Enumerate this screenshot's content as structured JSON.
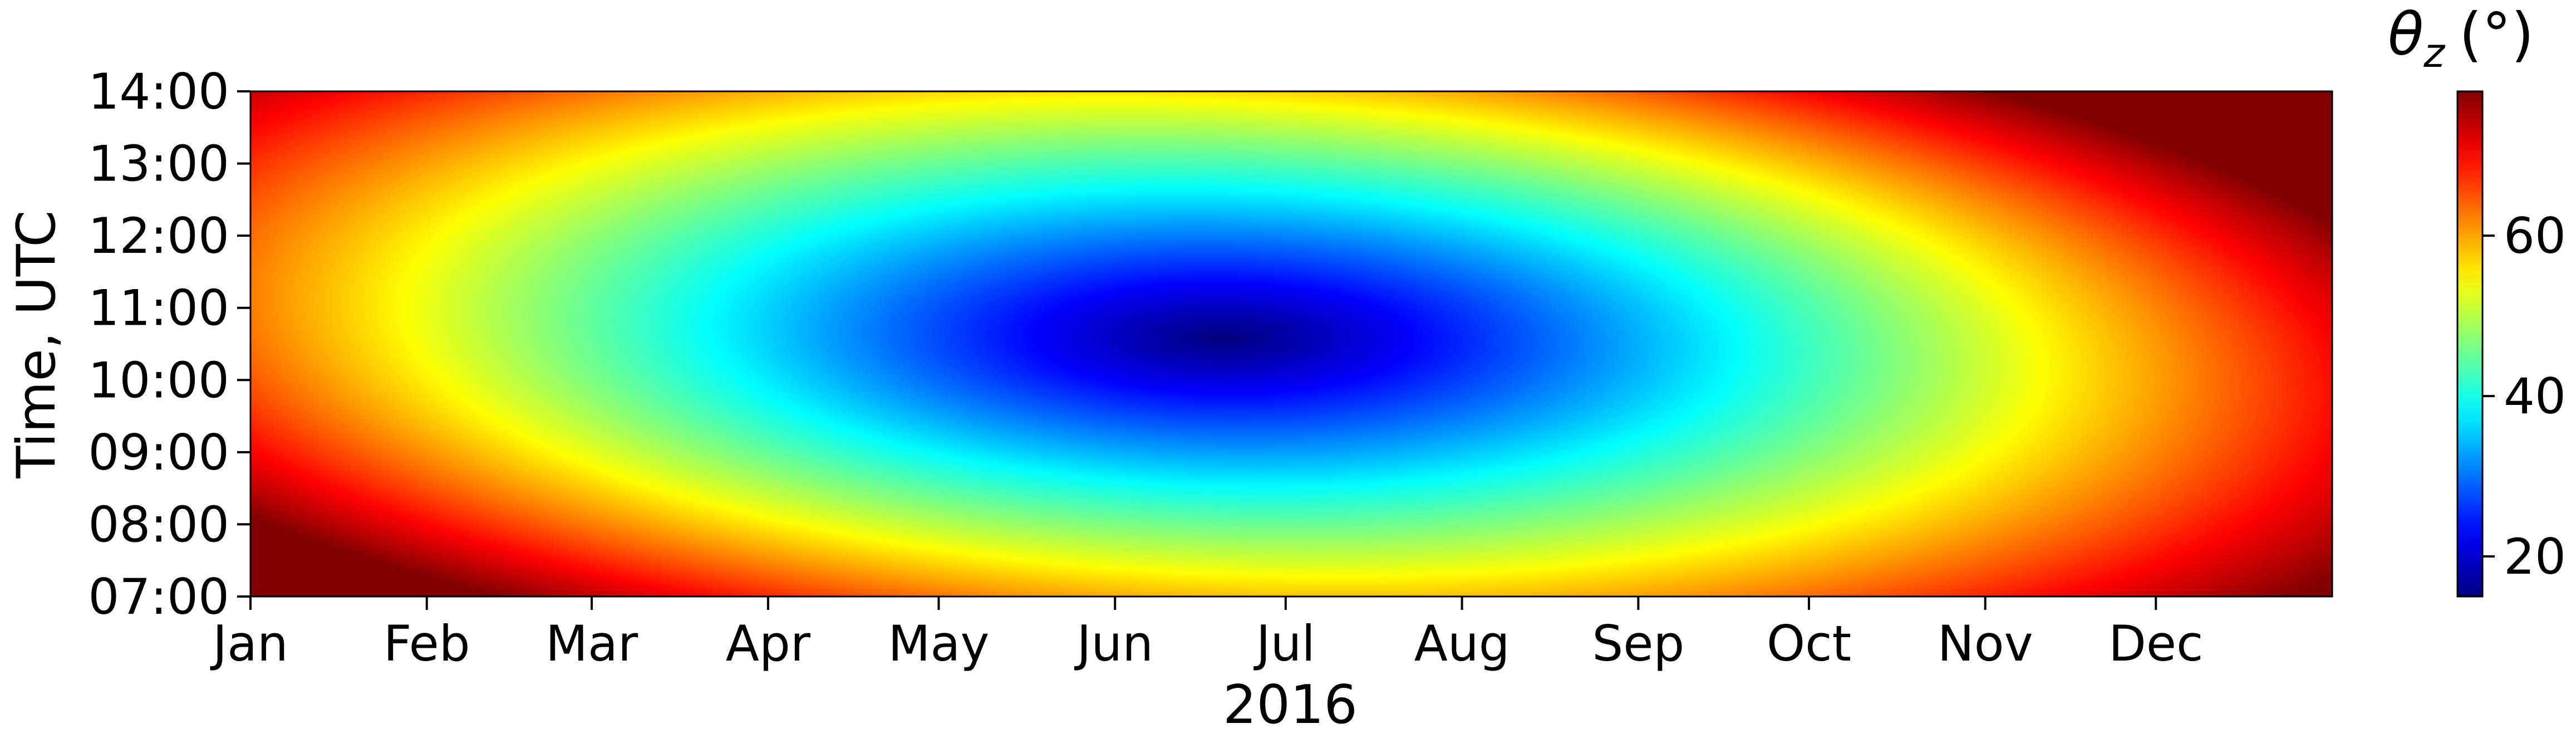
{
  "chart_data": {
    "type": "heatmap",
    "title": "",
    "xlabel": "2016",
    "ylabel": "Time, UTC",
    "x_tick_labels": [
      "Jan",
      "Feb",
      "Mar",
      "Apr",
      "May",
      "Jun",
      "Jul",
      "Aug",
      "Sep",
      "Oct",
      "Nov",
      "Dec"
    ],
    "y_tick_labels": [
      "14:00",
      "13:00",
      "12:00",
      "11:00",
      "10:00",
      "09:00",
      "08:00",
      "07:00"
    ],
    "x_range": [
      "2016-01-01",
      "2016-12-31"
    ],
    "y_range": [
      "07:00",
      "14:00"
    ],
    "colorbar": {
      "title_symbol": "θ",
      "title_subscript": "z",
      "title_unit": "(°)",
      "ticks": [
        20,
        40,
        60
      ],
      "range": [
        15,
        78
      ],
      "colormap": "jet"
    },
    "data_description": {
      "quantity": "solar zenith angle θz (°)",
      "minimum": {
        "date": "2016-06-20",
        "time": "10:35",
        "value": 15
      },
      "maximum": {
        "corners": [
          "Jan 07:00",
          "Dec 14:00"
        ],
        "value": 78
      },
      "sample_grid": {
        "dates": [
          "2016-01-01",
          "2016-02-01",
          "2016-03-01",
          "2016-04-01",
          "2016-05-01",
          "2016-06-01",
          "2016-07-01",
          "2016-08-01",
          "2016-09-01",
          "2016-10-01",
          "2016-11-01",
          "2016-12-01"
        ],
        "values_at_10_30": [
          66,
          60,
          49,
          38,
          27,
          19,
          17,
          24,
          36,
          47,
          60,
          66
        ],
        "values_at_07_00": [
          78,
          73,
          65,
          58,
          53,
          50,
          50,
          53,
          58,
          65,
          72,
          77
        ],
        "values_at_14_00": [
          76,
          71,
          65,
          58,
          53,
          50,
          50,
          53,
          58,
          65,
          72,
          78
        ]
      }
    },
    "grid": false,
    "legend": "colorbar-right"
  }
}
